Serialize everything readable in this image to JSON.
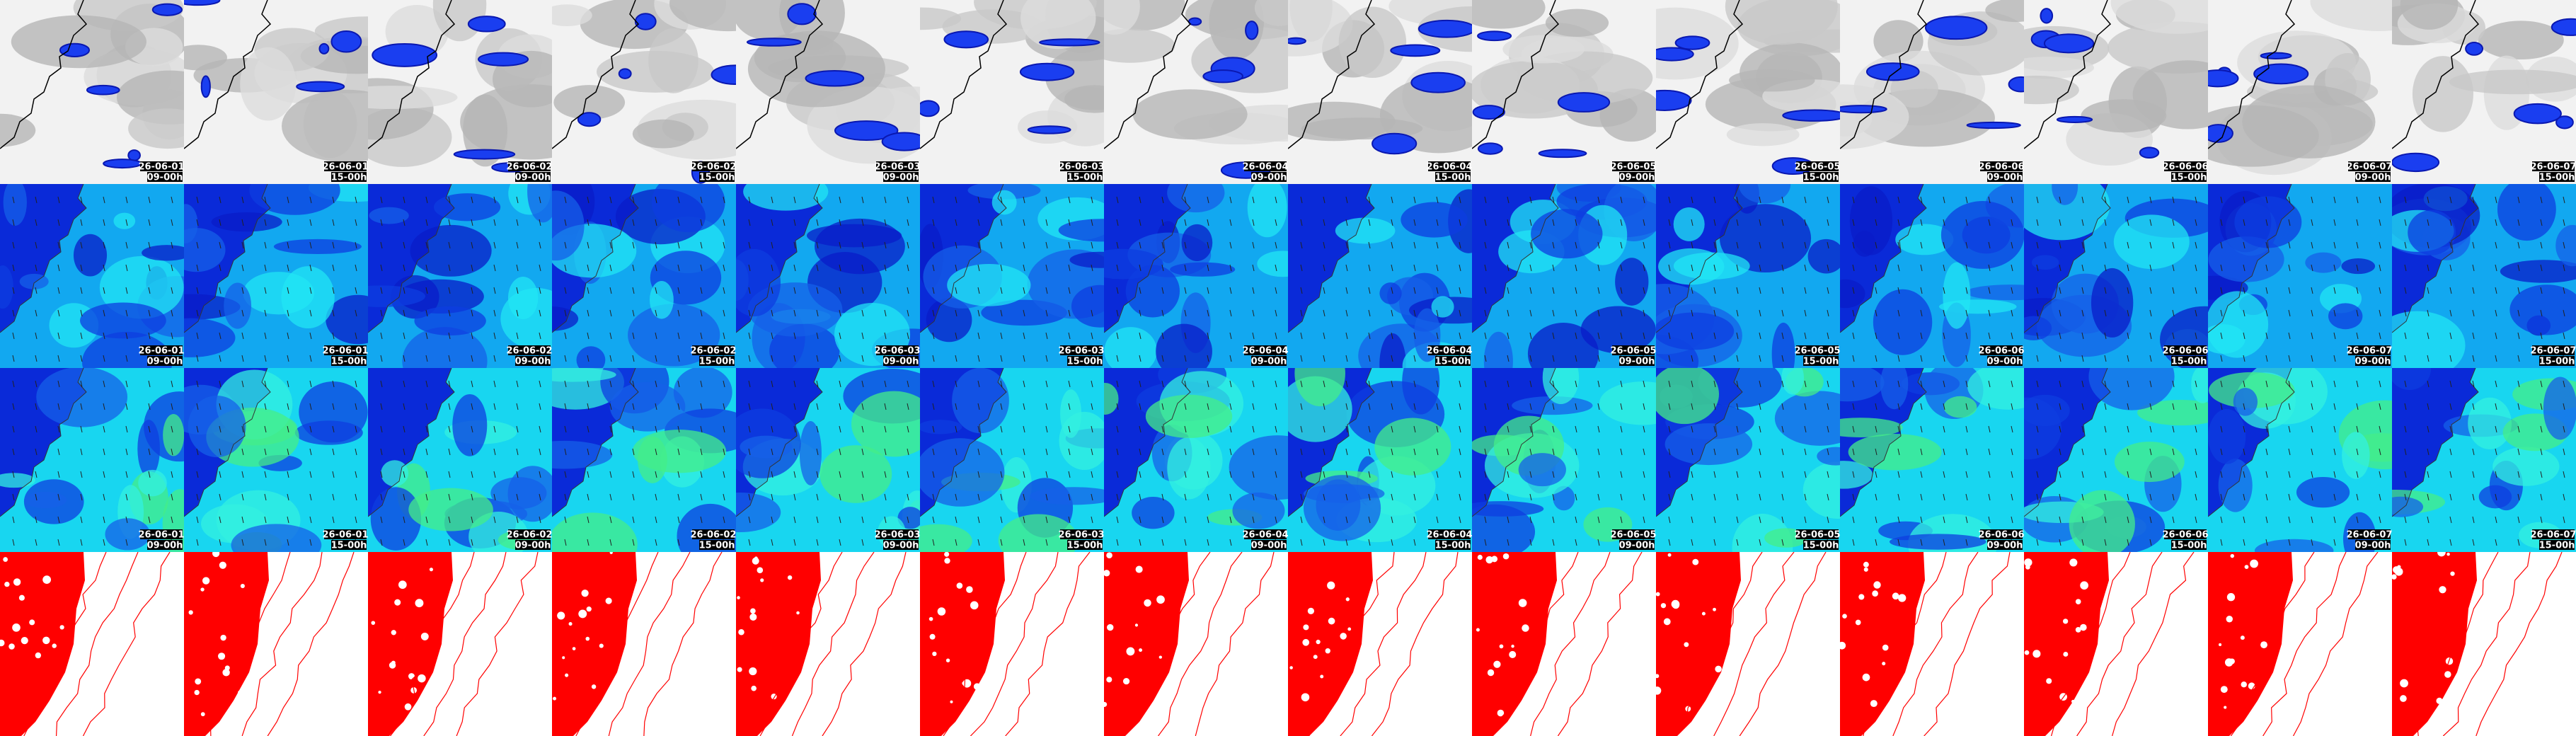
{
  "columns": [
    {
      "date": "26-06-01",
      "time": "09-00h"
    },
    {
      "date": "26-06-01",
      "time": "15-00h"
    },
    {
      "date": "26-06-02",
      "time": "09-00h"
    },
    {
      "date": "26-06-02",
      "time": "15-00h"
    },
    {
      "date": "26-06-03",
      "time": "09-00h"
    },
    {
      "date": "26-06-03",
      "time": "15-00h"
    },
    {
      "date": "26-06-04",
      "time": "09-00h"
    },
    {
      "date": "26-06-04",
      "time": "15-00h"
    },
    {
      "date": "26-06-05",
      "time": "09-00h"
    },
    {
      "date": "26-06-05",
      "time": "15-00h"
    },
    {
      "date": "26-06-06",
      "time": "09-00h"
    },
    {
      "date": "26-06-06",
      "time": "15-00h"
    },
    {
      "date": "26-06-07",
      "time": "09-00h"
    },
    {
      "date": "26-06-07",
      "time": "15-00h"
    }
  ]
}
